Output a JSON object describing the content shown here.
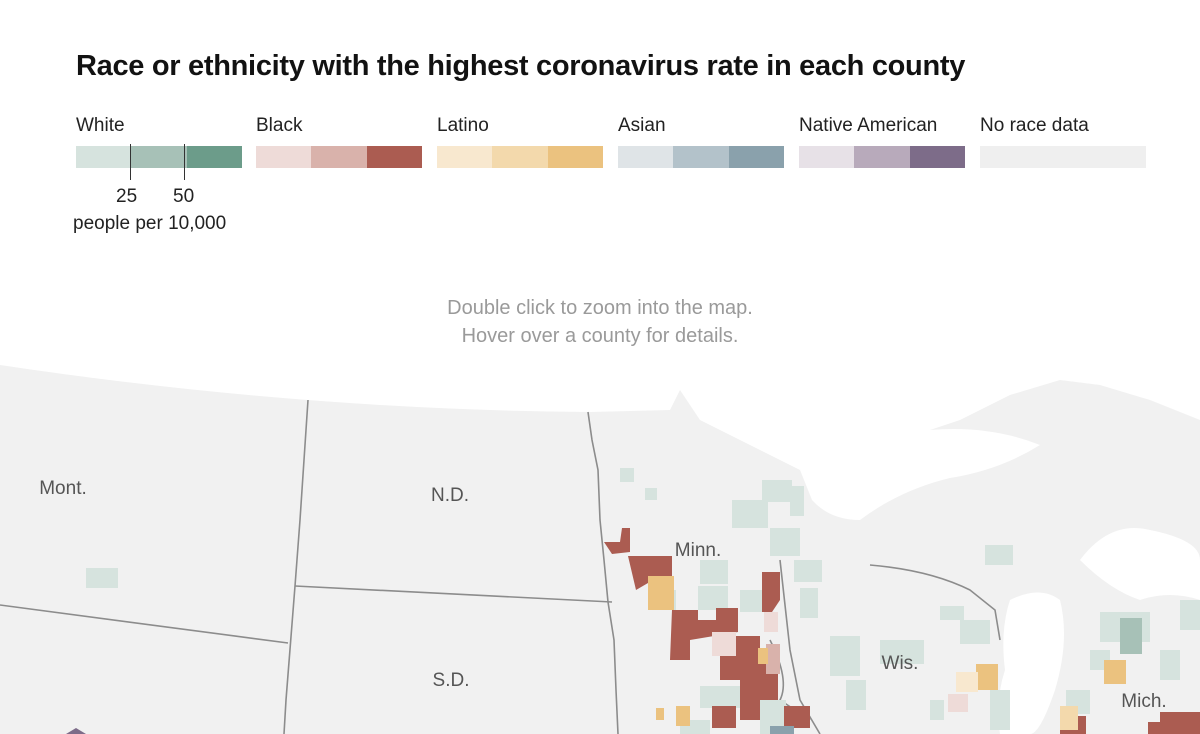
{
  "title": "Race or ethnicity with the highest coronavirus rate in each county",
  "legend": {
    "groups": [
      {
        "label": "White",
        "colors": [
          "#d6e3de",
          "#a7c1b7",
          "#6c9c8a"
        ]
      },
      {
        "label": "Black",
        "colors": [
          "#eedbd8",
          "#d9b2ab",
          "#ab5c51"
        ]
      },
      {
        "label": "Latino",
        "colors": [
          "#f8e8cf",
          "#f3d9ac",
          "#ebc27f"
        ]
      },
      {
        "label": "Asian",
        "colors": [
          "#dfe4e7",
          "#b3c2ca",
          "#8aa1ac"
        ]
      },
      {
        "label": "Native American",
        "colors": [
          "#e7e1e7",
          "#b8aabb",
          "#7d6c89"
        ]
      },
      {
        "label": "No race data",
        "colors": [
          "#efefef"
        ]
      }
    ],
    "ticks": [
      "25",
      "50"
    ],
    "unit": "people per 10,000"
  },
  "hint": {
    "line1": "Double click to zoom into the map.",
    "line2": "Hover over a county for details."
  },
  "map": {
    "background": "#f1f1f1",
    "border_color": "#8c8c8c",
    "states": [
      "Mont.",
      "N.D.",
      "Minn.",
      "S.D.",
      "Wis.",
      "Mich."
    ]
  }
}
